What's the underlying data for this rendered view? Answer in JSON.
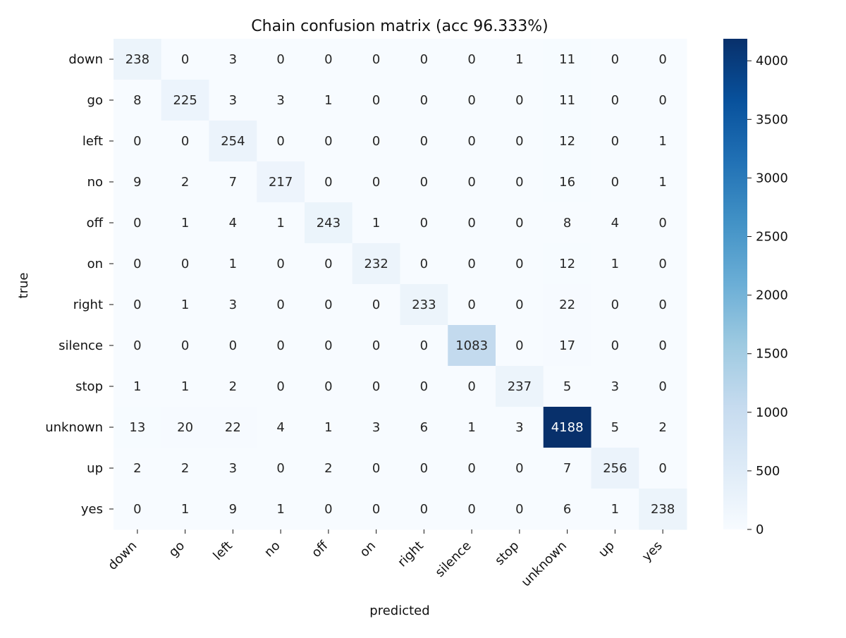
{
  "chart_data": {
    "type": "heatmap",
    "title": "Chain confusion matrix (acc 96.333%)",
    "xlabel": "predicted",
    "ylabel": "true",
    "x_categories": [
      "down",
      "go",
      "left",
      "no",
      "off",
      "on",
      "right",
      "silence",
      "stop",
      "unknown",
      "up",
      "yes"
    ],
    "y_categories": [
      "down",
      "go",
      "left",
      "no",
      "off",
      "on",
      "right",
      "silence",
      "stop",
      "unknown",
      "up",
      "yes"
    ],
    "values": [
      [
        238,
        0,
        3,
        0,
        0,
        0,
        0,
        0,
        1,
        11,
        0,
        0
      ],
      [
        8,
        225,
        3,
        3,
        1,
        0,
        0,
        0,
        0,
        11,
        0,
        0
      ],
      [
        0,
        0,
        254,
        0,
        0,
        0,
        0,
        0,
        0,
        12,
        0,
        1
      ],
      [
        9,
        2,
        7,
        217,
        0,
        0,
        0,
        0,
        0,
        16,
        0,
        1
      ],
      [
        0,
        1,
        4,
        1,
        243,
        1,
        0,
        0,
        0,
        8,
        4,
        0
      ],
      [
        0,
        0,
        1,
        0,
        0,
        232,
        0,
        0,
        0,
        12,
        1,
        0
      ],
      [
        0,
        1,
        3,
        0,
        0,
        0,
        233,
        0,
        0,
        22,
        0,
        0
      ],
      [
        0,
        0,
        0,
        0,
        0,
        0,
        0,
        1083,
        0,
        17,
        0,
        0
      ],
      [
        1,
        1,
        2,
        0,
        0,
        0,
        0,
        0,
        237,
        5,
        3,
        0
      ],
      [
        13,
        20,
        22,
        4,
        1,
        3,
        6,
        1,
        3,
        4188,
        5,
        2
      ],
      [
        2,
        2,
        3,
        0,
        2,
        0,
        0,
        0,
        0,
        7,
        256,
        0
      ],
      [
        0,
        1,
        9,
        1,
        0,
        0,
        0,
        0,
        0,
        6,
        1,
        238
      ]
    ],
    "colorbar": {
      "min": 0,
      "max": 4188,
      "ticks": [
        "0",
        "500",
        "1000",
        "1500",
        "2000",
        "2500",
        "3000",
        "3500",
        "4000"
      ],
      "colormap": "Blues",
      "colors": [
        "#f7fbff",
        "#deebf7",
        "#c6dbef",
        "#9ecae1",
        "#6baed6",
        "#4292c6",
        "#2171b5",
        "#08519c",
        "#08306b"
      ]
    },
    "grid": false
  }
}
